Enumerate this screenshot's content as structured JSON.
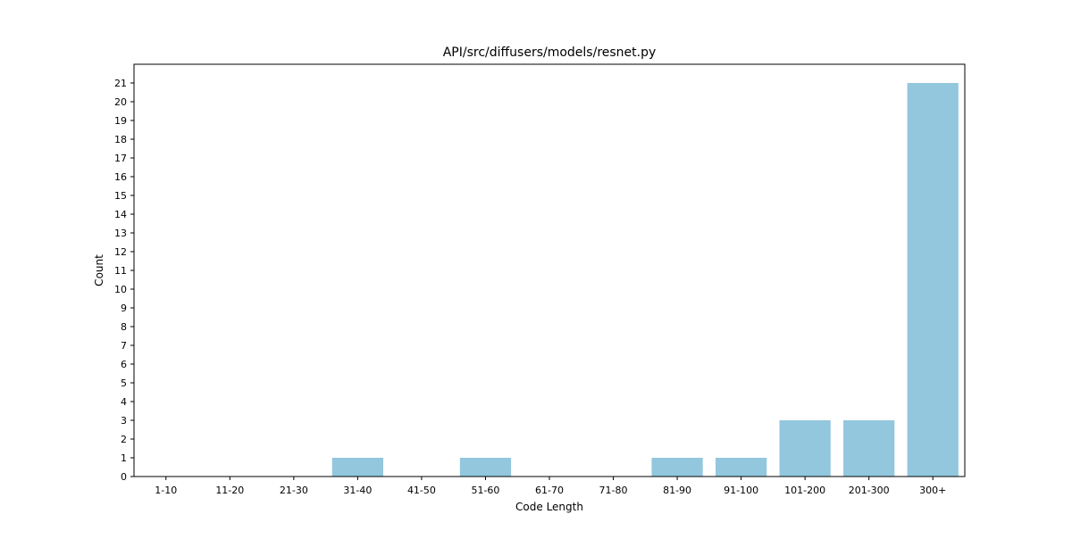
{
  "chart_data": {
    "type": "bar",
    "title": "API/src/diffusers/models/resnet.py",
    "xlabel": "Code Length",
    "ylabel": "Count",
    "categories": [
      "1-10",
      "11-20",
      "21-30",
      "31-40",
      "41-50",
      "51-60",
      "61-70",
      "71-80",
      "81-90",
      "91-100",
      "101-200",
      "201-300",
      "300+"
    ],
    "values": [
      0,
      0,
      0,
      1,
      0,
      1,
      0,
      0,
      1,
      1,
      3,
      3,
      21
    ],
    "ylim": [
      0,
      22
    ],
    "yticks": [
      0,
      1,
      2,
      3,
      4,
      5,
      6,
      7,
      8,
      9,
      10,
      11,
      12,
      13,
      14,
      15,
      16,
      17,
      18,
      19,
      20,
      21
    ],
    "grid": false,
    "legend": "none",
    "bar_color": "#92c7de"
  }
}
